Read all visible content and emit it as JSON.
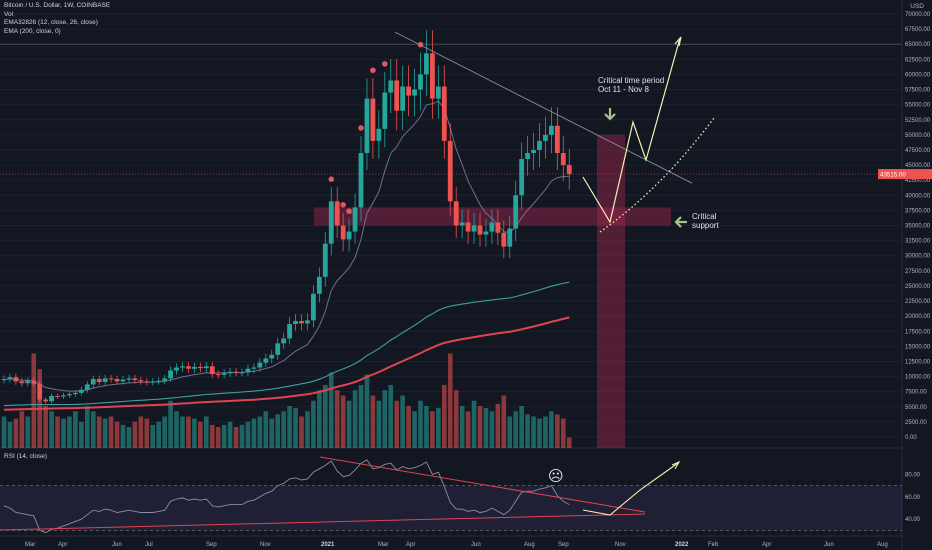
{
  "header": {
    "symbol_line": "Bitcoin / U.S. Dollar, 1W, COINBASE",
    "vol_label": "Vol",
    "ema_fast_label": "EMA32826 (12, close, 26, close)",
    "ema200_label": "EMA (200, close, 0)"
  },
  "rsi_legend": "RSI (14, close)",
  "currency_label": "USD",
  "annotations": {
    "critical_time_line1": "Critical time period",
    "critical_time_line2": "Oct 11 - Nov 8",
    "critical_support_line1": "Critical",
    "critical_support_line2": "support",
    "sad_face": "☹"
  },
  "colors": {
    "background": "#131722",
    "up": "#26a69a",
    "down": "#ef5350",
    "ema200": "#e04452",
    "ema_teal": "#3fa0a0",
    "ema_fast": "#6f6f90",
    "zone": "rgba(160,40,80,0.45)",
    "projection": "#f5f0b4",
    "dot": "#e05562"
  },
  "chart_data": {
    "type": "candlestick",
    "title": "Bitcoin / U.S. Dollar, 1W, COINBASE",
    "y_unit": "USD",
    "price_axis": {
      "ylim": [
        -1000,
        71000
      ],
      "ticks": [
        "70000.00",
        "67500.00",
        "65000.00",
        "62500.00",
        "60000.00",
        "57500.00",
        "55000.00",
        "52500.00",
        "50000.00",
        "47500.00",
        "45000.00",
        "42500.00",
        "40000.00",
        "37500.00",
        "35000.00",
        "32500.00",
        "30000.00",
        "27500.00",
        "25000.00",
        "22500.00",
        "20000.00",
        "17500.00",
        "15000.00",
        "12500.00",
        "10000.00",
        "7500.00",
        "5000.00",
        "2500.00",
        "0.00"
      ],
      "current_price_label": "43515.00"
    },
    "x_axis_labels": [
      "Mar",
      "Apr",
      "Jun",
      "Jul",
      "Sep",
      "Nov",
      "2021",
      "Mar",
      "Apr",
      "Jun",
      "Aug",
      "Sep",
      "Nov",
      "2022",
      "Feb",
      "Apr",
      "Jun",
      "Aug"
    ],
    "candles_close": [
      9600,
      9900,
      9200,
      8900,
      9300,
      8800,
      6200,
      5900,
      6800,
      6700,
      6900,
      7100,
      7300,
      7800,
      8700,
      9600,
      9100,
      9700,
      9600,
      9200,
      9500,
      9700,
      9400,
      9200,
      9100,
      9200,
      9300,
      9700,
      11000,
      11500,
      11700,
      11300,
      11600,
      11400,
      11700,
      10400,
      10300,
      10600,
      10800,
      10700,
      10700,
      11300,
      11500,
      12300,
      13000,
      13600,
      15500,
      16300,
      18700,
      19200,
      18800,
      19300,
      23700,
      26500,
      32000,
      39000,
      35000,
      32700,
      34000,
      38000,
      47000,
      56000,
      49000,
      51000,
      57000,
      59000,
      54000,
      58000,
      56500,
      57500,
      60000,
      63500,
      56000,
      58000,
      49000,
      39000,
      35000,
      35500,
      34000,
      35000,
      33500,
      34000,
      35500,
      33800,
      31500,
      34500,
      40000,
      46000,
      47000,
      47500,
      49000,
      50000,
      51500,
      47000,
      45000,
      43515
    ],
    "ema_fast_values": [
      9500,
      9600,
      9500,
      9400,
      9400,
      9300,
      8700,
      8200,
      8000,
      7800,
      7700,
      7600,
      7600,
      7650,
      7800,
      8100,
      8300,
      8500,
      8650,
      8750,
      8850,
      8950,
      9000,
      9050,
      9070,
      9090,
      9120,
      9200,
      9440,
      9700,
      9950,
      10150,
      10330,
      10480,
      10620,
      10610,
      10590,
      10600,
      10630,
      10650,
      10670,
      10770,
      10880,
      11090,
      11340,
      11620,
      12140,
      12630,
      13450,
      14200,
      14740,
      15270,
      16680,
      18380,
      20790,
      24280,
      25890,
      26930,
      28000,
      29710,
      32710,
      37040,
      38720,
      40610,
      44060,
      46960,
      48040,
      49720,
      50770,
      51780,
      53040,
      54980,
      55140,
      55570,
      54330,
      51130,
      47640,
      45050,
      42350,
      40370,
      38440,
      37050,
      36180,
      35130,
      33950,
      33880,
      34770,
      36260,
      37560,
      38640,
      39770,
      40960,
      42350,
      42920,
      43090,
      43140
    ],
    "ema200_values": [
      4500,
      4530,
      4560,
      4590,
      4620,
      4650,
      4670,
      4690,
      4710,
      4730,
      4750,
      4770,
      4790,
      4820,
      4850,
      4890,
      4930,
      4970,
      5010,
      5050,
      5090,
      5130,
      5170,
      5200,
      5240,
      5280,
      5320,
      5360,
      5420,
      5480,
      5540,
      5600,
      5660,
      5720,
      5780,
      5830,
      5880,
      5930,
      5980,
      6030,
      6080,
      6130,
      6180,
      6250,
      6320,
      6390,
      6480,
      6580,
      6700,
      6830,
      6950,
      7080,
      7250,
      7460,
      7710,
      8030,
      8300,
      8540,
      8800,
      9100,
      9480,
      9950,
      10340,
      10750,
      11210,
      11690,
      12110,
      12560,
      12990,
      13430,
      13890,
      14380,
      14800,
      15240,
      15570,
      15810,
      16000,
      16200,
      16370,
      16540,
      16700,
      16860,
      17020,
      17160,
      17290,
      17430,
      17600,
      17820,
      18050,
      18290,
      18530,
      18790,
      19060,
      19300,
      19540,
      19790
    ],
    "ema_teal_values": [
      5200,
      5240,
      5280,
      5310,
      5350,
      5380,
      5380,
      5360,
      5360,
      5360,
      5370,
      5380,
      5400,
      5430,
      5480,
      5550,
      5610,
      5680,
      5750,
      5810,
      5880,
      5950,
      6020,
      6080,
      6140,
      6200,
      6260,
      6330,
      6430,
      6530,
      6640,
      6730,
      6830,
      6930,
      7030,
      7100,
      7170,
      7240,
      7310,
      7370,
      7440,
      7520,
      7600,
      7700,
      7810,
      7930,
      8080,
      8240,
      8430,
      8620,
      8800,
      8980,
      9240,
      9560,
      9950,
      10460,
      10890,
      11270,
      11670,
      12150,
      12740,
      13470,
      14040,
      14630,
      15320,
      16040,
      16630,
      17280,
      17870,
      18480,
      19130,
      19840,
      20390,
      20970,
      21380,
      21640,
      21820,
      22000,
      22150,
      22300,
      22420,
      22550,
      22690,
      22810,
      22900,
      23020,
      23240,
      23500,
      23780,
      24060,
      24350,
      24650,
      24960,
      25210,
      25420,
      25620
    ],
    "volume_relative": [
      0.3,
      0.25,
      0.28,
      0.35,
      0.3,
      0.9,
      0.75,
      0.4,
      0.35,
      0.3,
      0.28,
      0.3,
      0.35,
      0.25,
      0.4,
      0.35,
      0.3,
      0.28,
      0.3,
      0.25,
      0.22,
      0.2,
      0.25,
      0.3,
      0.28,
      0.22,
      0.25,
      0.3,
      0.45,
      0.35,
      0.3,
      0.3,
      0.28,
      0.25,
      0.3,
      0.22,
      0.2,
      0.22,
      0.25,
      0.2,
      0.22,
      0.25,
      0.28,
      0.3,
      0.35,
      0.28,
      0.32,
      0.35,
      0.4,
      0.38,
      0.3,
      0.35,
      0.45,
      0.55,
      0.6,
      0.72,
      0.55,
      0.5,
      0.45,
      0.55,
      0.6,
      0.7,
      0.5,
      0.45,
      0.55,
      0.6,
      0.45,
      0.5,
      0.4,
      0.35,
      0.45,
      0.4,
      0.35,
      0.38,
      0.6,
      0.9,
      0.55,
      0.4,
      0.35,
      0.45,
      0.4,
      0.38,
      0.35,
      0.42,
      0.5,
      0.3,
      0.35,
      0.4,
      0.32,
      0.3,
      0.28,
      0.3,
      0.35,
      0.32,
      0.28,
      0.1
    ],
    "dots_marked": [
      55,
      57,
      58,
      60,
      62,
      64,
      70
    ],
    "resistance_line": [
      [
        62,
        67000
      ],
      [
        102,
        42000
      ]
    ],
    "support_zone": [
      35000,
      38000
    ],
    "time_zone_label": "Critical time period Oct 11 - Nov 8",
    "projection_path": [
      [
        95,
        43000
      ],
      [
        100,
        37000
      ],
      [
        104,
        48000
      ],
      [
        106,
        51000
      ],
      [
        108,
        46000
      ],
      [
        112,
        66500
      ]
    ],
    "projection_dotted": [
      [
        100,
        36000
      ],
      [
        112,
        52000
      ]
    ],
    "rsi": {
      "ylim": [
        25,
        100
      ],
      "ticks": [
        "80.00",
        "60.00",
        "40.00"
      ],
      "upper_band": 70,
      "lower_band": 30,
      "values": [
        52,
        50,
        46,
        45,
        44,
        43,
        30,
        28,
        31,
        32,
        34,
        36,
        38,
        40,
        44,
        48,
        47,
        49,
        48,
        46,
        47,
        48,
        47,
        46,
        46,
        46,
        47,
        48,
        56,
        58,
        59,
        57,
        58,
        57,
        58,
        52,
        51,
        52,
        53,
        53,
        53,
        56,
        57,
        60,
        63,
        65,
        70,
        72,
        76,
        77,
        75,
        76,
        82,
        85,
        88,
        92,
        83,
        78,
        79,
        84,
        90,
        93,
        85,
        86,
        89,
        90,
        84,
        87,
        85,
        86,
        88,
        91,
        80,
        82,
        69,
        55,
        49,
        49,
        47,
        48,
        46,
        47,
        50,
        47,
        44,
        48,
        56,
        64,
        65,
        65,
        67,
        68,
        70,
        61,
        56,
        53
      ]
    }
  }
}
